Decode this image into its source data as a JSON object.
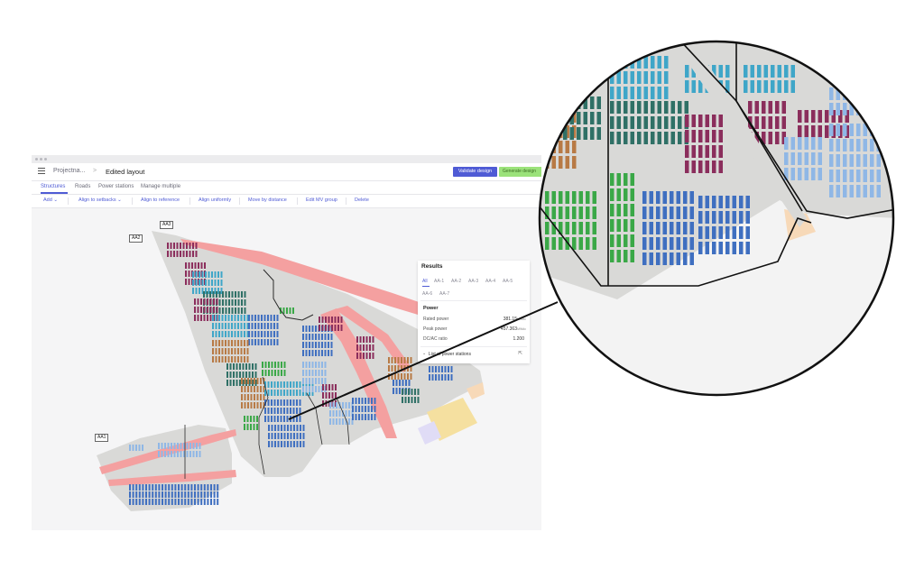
{
  "window": {
    "breadcrumb_parent": "Projectna...",
    "breadcrumb_sep": ">",
    "title": "Edited layout",
    "validate_label": "Validate design",
    "generate_label": "Generate design"
  },
  "tabs": [
    "Structures",
    "Roads",
    "Power stations",
    "Manage multiple"
  ],
  "toolbar": {
    "add": "Add",
    "align_setbacks": "Align to setbacks",
    "align_reference": "Align to reference",
    "align_uniformly": "Align uniformly",
    "move_distance": "Move by distance",
    "edit_mv": "Edit MV group",
    "delete": "Delete"
  },
  "zones": {
    "aa1": "AA1",
    "aa2": "AA2",
    "aa3": "AA3"
  },
  "results": {
    "title": "Results",
    "tabs": [
      "All",
      "AA-1",
      "AA-2",
      "AA-3",
      "AA-4",
      "AA-5",
      "AA-6",
      "AA-7"
    ],
    "power_title": "Power",
    "rated_label": "Rated power",
    "rated_value": "381.15",
    "rated_unit": "MWdc",
    "peak_label": "Peak power",
    "peak_value": "457.363",
    "peak_unit": "MWdc",
    "ratio_label": "DC/AC ratio",
    "ratio_value": "1.200",
    "list_label": "List of power stations"
  },
  "bottom_tools": [
    "select-icon",
    "hand-icon",
    "measure-icon",
    "undo-icon",
    "redo-icon",
    "rotate-icon",
    "focus-icon",
    "center-icon"
  ],
  "colors": {
    "accent": "#4f5bd5",
    "road": "#f4a0a0",
    "ground": "#d8d8d6",
    "purple": "#8b2e5c",
    "blue": "#3f6fc0",
    "light_blue": "#8fb7e6",
    "cyan": "#3fa6c8",
    "teal": "#2f7066",
    "green": "#3aa847",
    "orange": "#b87a45",
    "yellow": "#f5e0a0",
    "lavender": "#e0dcf6"
  }
}
